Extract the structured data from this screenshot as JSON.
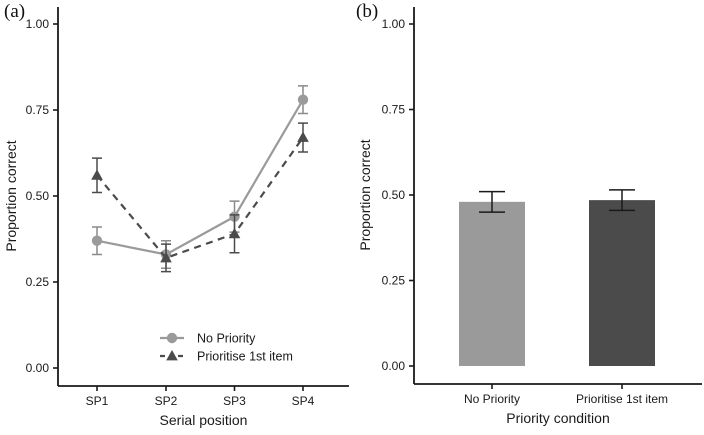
{
  "figure": {
    "background": "#ffffff",
    "text_color": "#1a1a1a",
    "axis_color": "#1a1a1a"
  },
  "panels": [
    {
      "tag": "(a)"
    },
    {
      "tag": "(b)"
    }
  ],
  "chart_data": [
    {
      "type": "line",
      "panel": "a",
      "title": "",
      "xlabel": "Serial position",
      "ylabel": "Proportion correct",
      "categories": [
        "SP1",
        "SP2",
        "SP3",
        "SP4"
      ],
      "ytick_labels": [
        "0.00",
        "0.25",
        "0.50",
        "0.75",
        "1.00"
      ],
      "yticks": [
        0.0,
        0.25,
        0.5,
        0.75,
        1.0
      ],
      "ylim": [
        0,
        1
      ],
      "grid": false,
      "legend_position": "inside-bottom-center",
      "series": [
        {
          "name": "No Priority",
          "marker": "circle",
          "line_style": "solid",
          "color": "#9a9a9a",
          "error_color": "#8a8a8a",
          "values": [
            0.37,
            0.33,
            0.44,
            0.78
          ],
          "errors": [
            0.04,
            0.04,
            0.045,
            0.04
          ]
        },
        {
          "name": "Prioritise 1st item",
          "marker": "triangle",
          "line_style": "dashed",
          "color": "#4b4b4b",
          "error_color": "#4b4b4b",
          "values": [
            0.56,
            0.32,
            0.39,
            0.67
          ],
          "errors": [
            0.05,
            0.04,
            0.055,
            0.042
          ]
        }
      ]
    },
    {
      "type": "bar",
      "panel": "b",
      "title": "",
      "xlabel": "Priority condition",
      "ylabel": "Proportion correct",
      "categories": [
        "No Priority",
        "Prioritise 1st item"
      ],
      "values": [
        0.48,
        0.485
      ],
      "errors": [
        0.03,
        0.03
      ],
      "colors": [
        "#9a9a9a",
        "#4b4b4b"
      ],
      "error_color": "#1a1a1a",
      "ytick_labels": [
        "0.00",
        "0.25",
        "0.50",
        "0.75",
        "1.00"
      ],
      "yticks": [
        0.0,
        0.25,
        0.5,
        0.75,
        1.0
      ],
      "ylim": [
        0,
        1
      ],
      "grid": false
    }
  ]
}
